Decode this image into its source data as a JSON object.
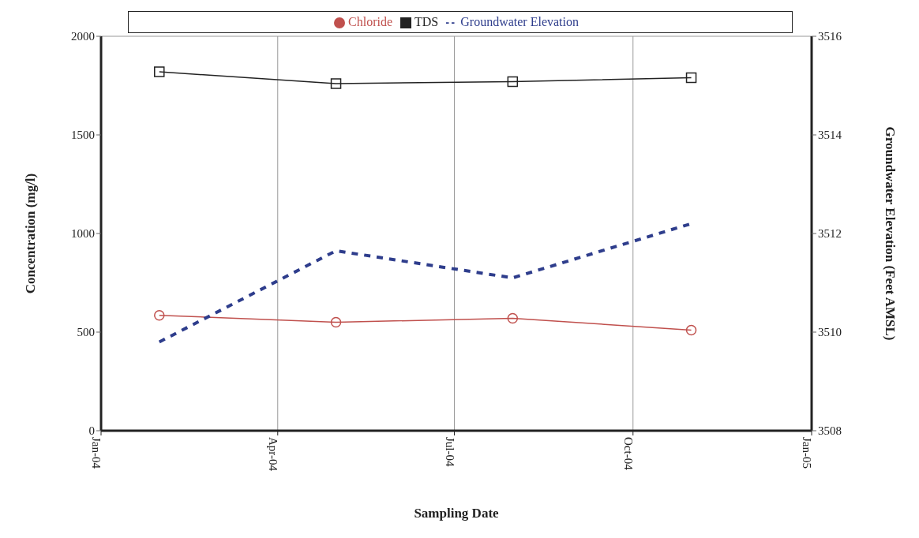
{
  "chart_data": {
    "type": "line",
    "xlabel": "Sampling Date",
    "ylabel": "Concentration (mg/l)",
    "y2label": "Groundwater Elevation (Feet AMSL)",
    "x": [
      "2004-01-31",
      "2004-05-01",
      "2004-07-31",
      "2004-10-31"
    ],
    "xlim": [
      "2004-01-01",
      "2005-01-01"
    ],
    "xticks": [
      {
        "value": "2004-01-01",
        "label": "Jan-04"
      },
      {
        "value": "2004-04-01",
        "label": "Apr-04"
      },
      {
        "value": "2004-07-01",
        "label": "Jul-04"
      },
      {
        "value": "2004-10-01",
        "label": "Oct-04"
      },
      {
        "value": "2005-01-01",
        "label": "Jan-05"
      }
    ],
    "ylim": [
      0,
      2000
    ],
    "yticks": [
      0,
      500,
      1000,
      1500,
      2000
    ],
    "y2lim": [
      3508,
      3516
    ],
    "y2ticks": [
      3508,
      3510,
      3512,
      3514,
      3516
    ],
    "grid": true,
    "legend": "top",
    "series": [
      {
        "name": "Chloride",
        "color": "#c0504d",
        "marker": "circle",
        "line_style": "solid",
        "values": [
          585,
          550,
          570,
          510
        ]
      },
      {
        "name": "TDS",
        "color": "#222222",
        "marker": "square",
        "line_style": "solid",
        "values": [
          1820,
          1760,
          1770,
          1790
        ]
      },
      {
        "name": "Groundwater Elevation",
        "color": "#2e3d8c",
        "marker": "none",
        "line_style": "dashed",
        "axis": "y2",
        "values": [
          3509.8,
          3511.65,
          3511.1,
          3512.2
        ]
      }
    ]
  }
}
